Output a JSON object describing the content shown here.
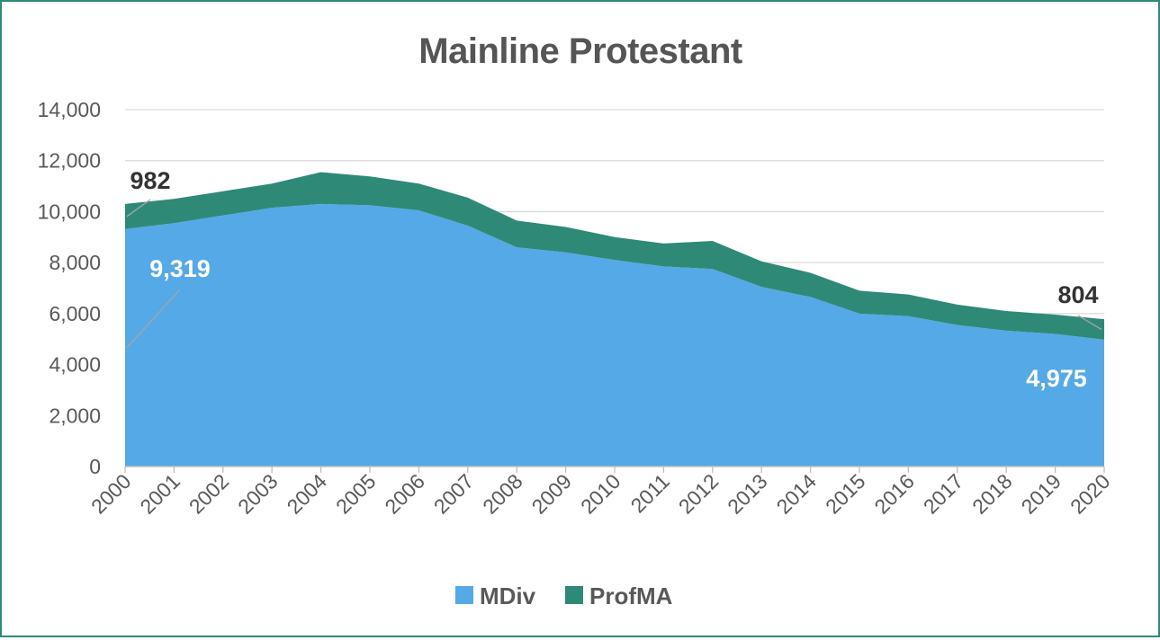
{
  "chart_data": {
    "type": "area",
    "stacked": true,
    "title": "Mainline Protestant",
    "xlabel": "",
    "ylabel": "",
    "categories": [
      "2000",
      "2001",
      "2002",
      "2003",
      "2004",
      "2005",
      "2006",
      "2007",
      "2008",
      "2009",
      "2010",
      "2011",
      "2012",
      "2013",
      "2014",
      "2015",
      "2016",
      "2017",
      "2018",
      "2019",
      "2020"
    ],
    "ylim": [
      0,
      14000
    ],
    "yticks": [
      0,
      2000,
      4000,
      6000,
      8000,
      10000,
      12000,
      14000
    ],
    "ytick_labels": [
      "0",
      "2,000",
      "4,000",
      "6,000",
      "8,000",
      "10,000",
      "12,000",
      "14,000"
    ],
    "grid": true,
    "legend_position": "bottom",
    "series": [
      {
        "name": "MDiv",
        "color": "#55a9e6",
        "values": [
          9319,
          9550,
          9850,
          10150,
          10300,
          10250,
          10050,
          9450,
          8600,
          8400,
          8100,
          7850,
          7750,
          7050,
          6650,
          6000,
          5900,
          5550,
          5330,
          5200,
          4975
        ]
      },
      {
        "name": "ProfMA",
        "color": "#2e8a77",
        "values": [
          982,
          950,
          950,
          950,
          1250,
          1130,
          1050,
          1100,
          1050,
          1000,
          900,
          900,
          1100,
          1000,
          950,
          900,
          850,
          800,
          770,
          760,
          804
        ]
      }
    ],
    "data_labels": [
      {
        "text": "982",
        "series": "ProfMA",
        "category": "2000",
        "style": "dark"
      },
      {
        "text": "9,319",
        "series": "MDiv",
        "category": "2000",
        "style": "light"
      },
      {
        "text": "804",
        "series": "ProfMA",
        "category": "2020",
        "style": "dark"
      },
      {
        "text": "4,975",
        "series": "MDiv",
        "category": "2020",
        "style": "light"
      }
    ],
    "axis_color": "#bfbfbf",
    "grid_color": "#d9d9d9"
  }
}
